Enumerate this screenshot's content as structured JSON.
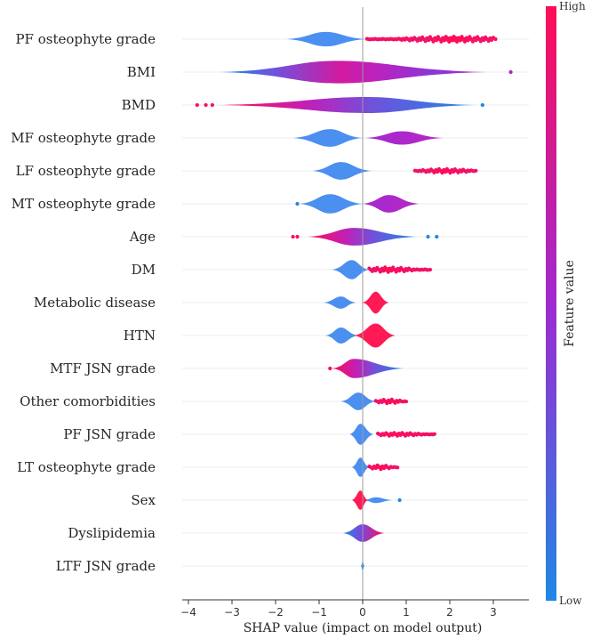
{
  "chart_data": {
    "type": "violin",
    "title": "",
    "xlabel": "SHAP value (impact on model output)",
    "ylabel": "",
    "xlim": [
      -4.15,
      3.8
    ],
    "xticks": [
      -4,
      -3,
      -2,
      -1,
      0,
      1,
      2,
      3
    ],
    "colorbar": {
      "title": "Feature value",
      "high_label": "High",
      "low_label": "Low",
      "high_color": "#ff0d57",
      "low_color": "#1e88e5"
    },
    "features": [
      {
        "name": "PF osteophyte grade",
        "low_range": [
          -1.75,
          0.1
        ],
        "low_center": -0.85,
        "low_width": 0.45,
        "high_range": [
          0.1,
          3.0
        ],
        "high_center": 2.1,
        "high_width": 0.2,
        "high_style": "dots",
        "outliers": [
          [
            0.75,
            1.0
          ],
          [
            0.9,
            1.0
          ],
          [
            3.05,
            1.0
          ]
        ]
      },
      {
        "name": "BMI",
        "range": [
          -3.25,
          2.85
        ],
        "center": -0.6,
        "width": 0.7,
        "gradient": "mixed",
        "outliers": [
          [
            3.4,
            0.6
          ]
        ]
      },
      {
        "name": "BMD",
        "range": [
          -3.3,
          2.6
        ],
        "center": 0.1,
        "width": 0.5,
        "gradient": "high_left",
        "outliers": [
          [
            -3.8,
            1.0
          ],
          [
            -3.6,
            1.0
          ],
          [
            -3.45,
            1.0
          ],
          [
            2.75,
            0.0
          ]
        ]
      },
      {
        "name": "MF osteophyte grade",
        "low_range": [
          -1.6,
          0.0
        ],
        "low_center": -0.75,
        "low_width": 0.55,
        "high_range": [
          0.05,
          1.85
        ],
        "high_center": 0.9,
        "high_width": 0.42,
        "high_style": "fill",
        "outliers": []
      },
      {
        "name": "LF osteophyte grade",
        "low_range": [
          -1.15,
          0.2
        ],
        "low_center": -0.5,
        "low_width": 0.55,
        "high_range": [
          1.2,
          2.6
        ],
        "high_center": 1.9,
        "high_width": 0.15,
        "high_style": "dots",
        "outliers": []
      },
      {
        "name": "MT osteophyte grade",
        "low_range": [
          -1.45,
          0.0
        ],
        "low_center": -0.75,
        "low_width": 0.6,
        "high_range": [
          0.0,
          1.3
        ],
        "high_center": 0.6,
        "high_width": 0.55,
        "high_style": "fill",
        "outliers": [
          [
            -1.5,
            0.0
          ]
        ]
      },
      {
        "name": "Age",
        "range": [
          -1.25,
          1.25
        ],
        "center": -0.2,
        "width": 0.55,
        "gradient": "high_left",
        "outliers": [
          [
            -1.6,
            1.0
          ],
          [
            -1.5,
            1.0
          ],
          [
            1.5,
            0.0
          ],
          [
            1.7,
            0.0
          ]
        ]
      },
      {
        "name": "DM",
        "low_range": [
          -0.7,
          0.15
        ],
        "low_center": -0.25,
        "low_width": 0.6,
        "high_range": [
          0.15,
          1.5
        ],
        "high_center": 0.6,
        "high_width": 0.18,
        "high_style": "dots",
        "outliers": [
          [
            1.55,
            1.0
          ]
        ]
      },
      {
        "name": "Metabolic disease",
        "low_range": [
          -0.9,
          -0.15
        ],
        "low_center": -0.5,
        "low_width": 0.38,
        "high_range": [
          0.0,
          0.6
        ],
        "high_center": 0.3,
        "high_width": 0.68,
        "high_style": "fill",
        "outliers": []
      },
      {
        "name": "HTN",
        "low_range": [
          -0.85,
          -0.1
        ],
        "low_center": -0.5,
        "low_width": 0.5,
        "high_range": [
          -0.2,
          0.75
        ],
        "high_center": 0.3,
        "high_width": 0.75,
        "high_style": "fill",
        "outliers": []
      },
      {
        "name": "MTF JSN grade",
        "range": [
          -0.7,
          0.95
        ],
        "center": -0.2,
        "width": 0.6,
        "gradient": "high_left",
        "outliers": [
          [
            -0.75,
            1.0
          ]
        ]
      },
      {
        "name": "Other comorbidities",
        "low_range": [
          -0.5,
          0.3
        ],
        "low_center": -0.1,
        "low_width": 0.55,
        "high_range": [
          0.3,
          1.0
        ],
        "high_center": 0.6,
        "high_width": 0.15,
        "high_style": "dots",
        "outliers": []
      },
      {
        "name": "PF JSN grade",
        "low_range": [
          -0.3,
          0.25
        ],
        "low_center": -0.05,
        "low_width": 0.65,
        "high_range": [
          0.35,
          1.65
        ],
        "high_center": 0.8,
        "high_width": 0.12,
        "high_style": "dots",
        "outliers": []
      },
      {
        "name": "LT osteophyte grade",
        "low_range": [
          -0.25,
          0.15
        ],
        "low_center": -0.05,
        "low_width": 0.6,
        "high_range": [
          0.15,
          0.8
        ],
        "high_center": 0.4,
        "high_width": 0.15,
        "high_style": "dots",
        "outliers": []
      },
      {
        "name": "Sex",
        "low_range": [
          0.0,
          0.7
        ],
        "low_center": 0.3,
        "low_width": 0.18,
        "high_range": [
          -0.25,
          0.12
        ],
        "high_center": -0.05,
        "high_width": 0.6,
        "high_style": "fill",
        "outliers": [
          [
            0.85,
            0.0
          ]
        ]
      },
      {
        "name": "Dyslipidemia",
        "range": [
          -0.45,
          0.5
        ],
        "center": 0.0,
        "width": 0.55,
        "gradient": "high_right",
        "outliers": []
      },
      {
        "name": "LTF JSN grade",
        "range": [
          -0.04,
          0.04
        ],
        "center": 0.0,
        "width": 0.3,
        "gradient": "low",
        "outliers": []
      }
    ]
  }
}
